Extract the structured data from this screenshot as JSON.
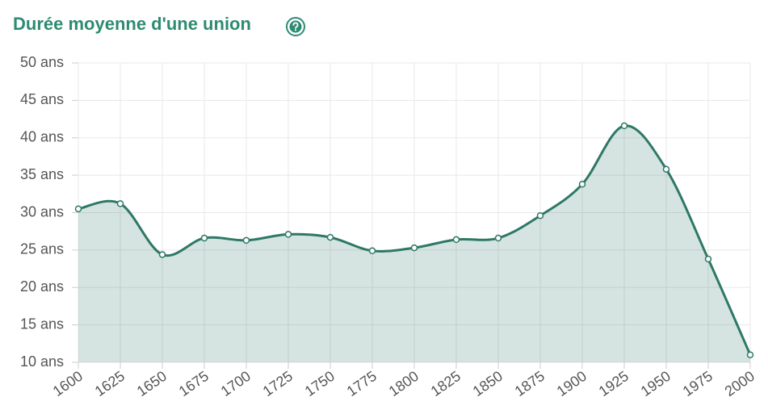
{
  "chart_data": {
    "type": "area",
    "title": "Durée moyenne d'une union",
    "x": [
      1600,
      1625,
      1650,
      1675,
      1700,
      1725,
      1750,
      1775,
      1800,
      1825,
      1850,
      1875,
      1900,
      1925,
      1950,
      1975,
      2000
    ],
    "values": [
      30.5,
      31.2,
      24.4,
      26.6,
      26.3,
      27.1,
      26.7,
      24.9,
      25.3,
      26.4,
      26.6,
      29.6,
      33.8,
      41.6,
      35.8,
      23.8,
      11.0
    ],
    "color": "#2e7866",
    "xlim": [
      1600,
      2000
    ],
    "xticks": [
      1600,
      1625,
      1650,
      1675,
      1700,
      1725,
      1750,
      1775,
      1800,
      1825,
      1850,
      1875,
      1900,
      1925,
      1950,
      1975,
      2000
    ],
    "ylim": [
      10,
      50
    ],
    "yticks": [
      {
        "value": 10,
        "label": "10 ans"
      },
      {
        "value": 15,
        "label": "15 ans"
      },
      {
        "value": 20,
        "label": "20 ans"
      },
      {
        "value": 25,
        "label": "25 ans"
      },
      {
        "value": 30,
        "label": "30 ans"
      },
      {
        "value": 35,
        "label": "35 ans"
      },
      {
        "value": 40,
        "label": "40 ans"
      },
      {
        "value": 45,
        "label": "45 ans"
      },
      {
        "value": 50,
        "label": "50 ans"
      }
    ],
    "grid": true
  }
}
